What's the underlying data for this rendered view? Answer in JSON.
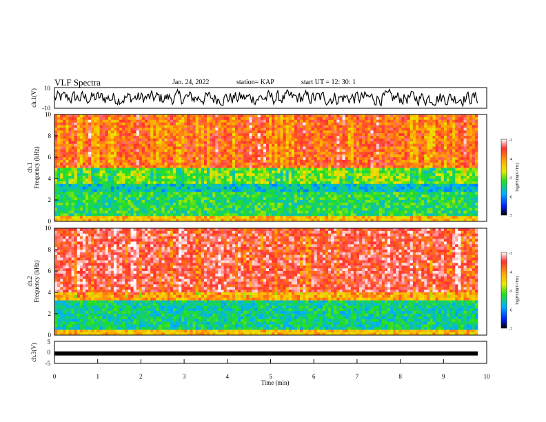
{
  "header": {
    "title": "VLF Spectra",
    "date": "Jan. 24, 2022",
    "station": "station= KAP",
    "start": "start  UT =   12: 30: 1"
  },
  "chart_data": [
    {
      "type": "line",
      "ylabel": "ch.1(V)",
      "ylim": [
        -10,
        10
      ],
      "yticks": [
        10,
        -10
      ],
      "xlim": [
        0,
        10
      ],
      "series_desc_values": "noisy waveform fluctuating roughly between -8 and 8 V over 0-9.8 min"
    },
    {
      "type": "heatmap",
      "ylabel": [
        "ch.1",
        "Frequency  (kHz)"
      ],
      "ylim": [
        0,
        10
      ],
      "yticks": [
        0,
        2,
        4,
        6,
        8,
        10
      ],
      "xlim": [
        0,
        10
      ],
      "colorbar": {
        "label": "log(PSD)(V²/Hz)",
        "ticks": [
          -3,
          -4,
          -5,
          -6,
          -7
        ],
        "range": [
          -7,
          -3
        ]
      },
      "bands": [
        {
          "from_khz": 0,
          "to_khz": 0.5,
          "level": -4.3
        },
        {
          "from_khz": 0.5,
          "to_khz": 2.8,
          "level": -5.3
        },
        {
          "from_khz": 2.8,
          "to_khz": 3.6,
          "level": -5.7
        },
        {
          "from_khz": 3.6,
          "to_khz": 5.0,
          "level": -5.0
        },
        {
          "from_khz": 5.0,
          "to_khz": 10,
          "level": -3.8
        }
      ]
    },
    {
      "type": "heatmap",
      "ylabel": [
        "ch.2",
        "Frequency  (kHz)"
      ],
      "ylim": [
        0,
        10
      ],
      "yticks": [
        0,
        2,
        4,
        6,
        8,
        10
      ],
      "xlim": [
        0,
        10
      ],
      "colorbar": {
        "label": "log(PSD)(V²/Hz)",
        "ticks": [
          -3,
          -4,
          -5,
          -6,
          -7
        ],
        "range": [
          -7,
          -3
        ]
      },
      "bands": [
        {
          "from_khz": 0,
          "to_khz": 0.4,
          "level": -4.3
        },
        {
          "from_khz": 0.4,
          "to_khz": 3.2,
          "level": -5.5
        },
        {
          "from_khz": 3.2,
          "to_khz": 4.0,
          "level": -4.2
        },
        {
          "from_khz": 4.0,
          "to_khz": 10,
          "level": -3.5
        }
      ]
    },
    {
      "type": "line",
      "ylabel": "ch.3(V)",
      "ylim": [
        -5,
        5
      ],
      "yticks": [
        5,
        0,
        -5
      ],
      "xlim": [
        0,
        10
      ],
      "xticks": [
        0,
        1,
        2,
        3,
        4,
        5,
        6,
        7,
        8,
        9,
        10
      ],
      "xlabel": "Time  (min)",
      "level": -0.5
    }
  ]
}
